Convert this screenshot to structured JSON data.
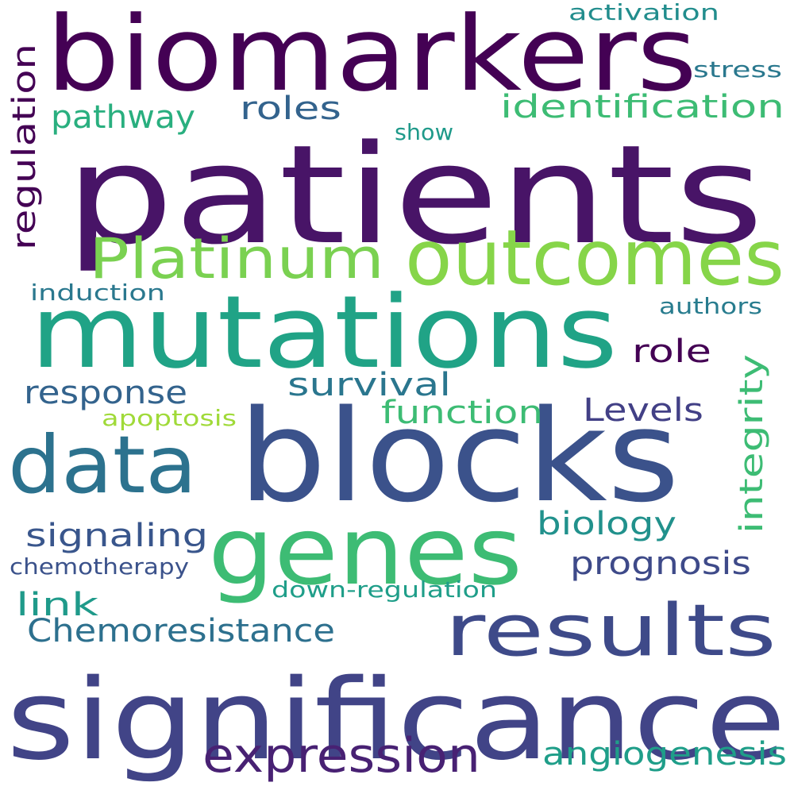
{
  "words": [
    {
      "text": "biomarkers",
      "color": "#440154"
    },
    {
      "text": "patients",
      "color": "#481467"
    },
    {
      "text": "Platinum",
      "color": "#7ad151"
    },
    {
      "text": "outcomes",
      "color": "#86d549"
    },
    {
      "text": "mutations",
      "color": "#20a386"
    },
    {
      "text": "blocks",
      "color": "#3b528b"
    },
    {
      "text": "data",
      "color": "#2c728e"
    },
    {
      "text": "genes",
      "color": "#3dbc74"
    },
    {
      "text": "results",
      "color": "#3e4a89"
    },
    {
      "text": "significance",
      "color": "#414487"
    },
    {
      "text": "expression",
      "color": "#482173"
    },
    {
      "text": "regulation",
      "color": "#440154"
    },
    {
      "text": "activation",
      "color": "#228d8d"
    },
    {
      "text": "stress",
      "color": "#2a788e"
    },
    {
      "text": "identification",
      "color": "#3dbc74"
    },
    {
      "text": "pathway",
      "color": "#29af7f"
    },
    {
      "text": "roles",
      "color": "#33638d"
    },
    {
      "text": "show",
      "color": "#1f9a8a"
    },
    {
      "text": "induction",
      "color": "#2a788e"
    },
    {
      "text": "authors",
      "color": "#287c8e"
    },
    {
      "text": "role",
      "color": "#440154"
    },
    {
      "text": "integrity",
      "color": "#3dbc74"
    },
    {
      "text": "survival",
      "color": "#2a768e"
    },
    {
      "text": "response",
      "color": "#33638d"
    },
    {
      "text": "function",
      "color": "#3dbc74"
    },
    {
      "text": "Levels",
      "color": "#424086"
    },
    {
      "text": "apoptosis",
      "color": "#a0da39"
    },
    {
      "text": "biology",
      "color": "#21918c"
    },
    {
      "text": "signaling",
      "color": "#39568c"
    },
    {
      "text": "prognosis",
      "color": "#3e4a89"
    },
    {
      "text": "chemotherapy",
      "color": "#3b528b"
    },
    {
      "text": "down-regulation",
      "color": "#1f9e89"
    },
    {
      "text": "link",
      "color": "#1f9a8a"
    },
    {
      "text": "Chemoresistance",
      "color": "#2d708e"
    },
    {
      "text": "angiogenesis",
      "color": "#1f9e89"
    }
  ]
}
